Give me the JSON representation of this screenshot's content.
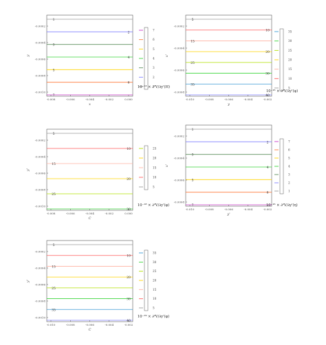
{
  "colors": {
    "frame": "#555555",
    "text": "#444444",
    "swatch_seq_6": [
      "#9a9a9a",
      "#8080ff",
      "#5c8f5c",
      "#3ad43a",
      "#ffd400",
      "#ff7a3a",
      "#c83ac8"
    ],
    "swatch_seq_11": [
      "#9a9a9a",
      "#ff5c5c",
      "#ffb0a0",
      "#ffd400",
      "#b0e000",
      "#3ad43a",
      "#3a9ad4",
      "#8080ff",
      "#c060ff",
      "#ff5cff",
      "#ff9aff"
    ],
    "swatch_seq_13": [
      "#9a9a9a",
      "#ff5c5c",
      "#ffb0a0",
      "#ffd400",
      "#b0e000",
      "#3ad43a",
      "#3a9ad4",
      "#8080ff",
      "#c060ff",
      "#ff5cff",
      "#ff9aff",
      "#ffbbee",
      "#ff7aff"
    ]
  },
  "chart_data": [
    {
      "type": "contour",
      "xlabel": "x",
      "ylabel": "y",
      "x_ticks": [
        "-0.008",
        "-0.006",
        "-0.004",
        "-0.002",
        "0.000"
      ],
      "y_ticks": [
        "-0.0002",
        "-0.0004",
        "-0.0006",
        "-0.0008",
        "-0.0010"
      ],
      "levels": [
        1,
        2,
        3,
        4,
        5,
        6,
        7
      ],
      "colorbar_ticks": [
        "7",
        "6",
        "5",
        "4",
        "3",
        "2",
        "1"
      ],
      "colorbar_label": "10⁻¹³ × ∂²V/∂y'(H)"
    },
    {
      "type": "contour",
      "xlabel": "y",
      "ylabel": "x'",
      "x_ticks": [
        "-0.010",
        "-0.008",
        "-0.006",
        "-0.004",
        "-0.002"
      ],
      "y_ticks": [
        "-0.0002",
        "-0.0004",
        "-0.0006",
        "-0.0008"
      ],
      "levels": [
        5,
        10,
        15,
        20,
        25,
        30,
        35,
        40
      ],
      "colorbar_ticks": [
        "35",
        "30",
        "25",
        "20",
        "15",
        "10",
        "5"
      ],
      "colorbar_label": "10⁻¹⁶ × ∂²V/∂y'(φ)"
    },
    {
      "type": "contour",
      "xlabel": "C",
      "ylabel": "y'",
      "x_ticks": [
        "-0.008",
        "-0.006",
        "-0.004",
        "-0.002",
        "0.000"
      ],
      "y_ticks": [
        "-0.0002",
        "-0.0004",
        "-0.0006",
        "-0.0008",
        "-0.0010"
      ],
      "levels": [
        5,
        10,
        15,
        20,
        25,
        30
      ],
      "colorbar_ticks": [
        "25",
        "20",
        "15",
        "10",
        "5"
      ],
      "colorbar_label": "10⁻¹⁸ × ∂²V/∂y'(φ)"
    },
    {
      "type": "contour",
      "xlabel": "y'",
      "ylabel": "x'",
      "x_ticks": [
        "-0.010",
        "-0.008",
        "-0.006",
        "-0.004",
        "-0.002"
      ],
      "y_ticks": [
        "-0.0002",
        "-0.0004",
        "-0.0006",
        "-0.0008"
      ],
      "levels": [
        1,
        2,
        3,
        4,
        5,
        6,
        7
      ],
      "colorbar_ticks": [
        "7",
        "6",
        "5",
        "4",
        "3",
        "2",
        "1"
      ],
      "colorbar_label": "10⁻¹⁶ × ∂²V/∂y'(η)"
    },
    {
      "type": "contour",
      "xlabel": "C",
      "ylabel": "y'",
      "x_ticks": [
        "-0.010",
        "-0.008",
        "-0.006",
        "-0.004",
        "-0.002"
      ],
      "y_ticks": [
        "-0.0002",
        "-0.0004",
        "-0.0006",
        "-0.0008",
        "-0.0010"
      ],
      "levels": [
        5,
        10,
        15,
        20,
        25,
        30,
        35,
        40
      ],
      "colorbar_ticks": [
        "35",
        "30",
        "25",
        "20",
        "15",
        "10",
        "5"
      ],
      "colorbar_label": "10⁻¹⁹ × ∂²V/∂y'(φ)"
    }
  ]
}
